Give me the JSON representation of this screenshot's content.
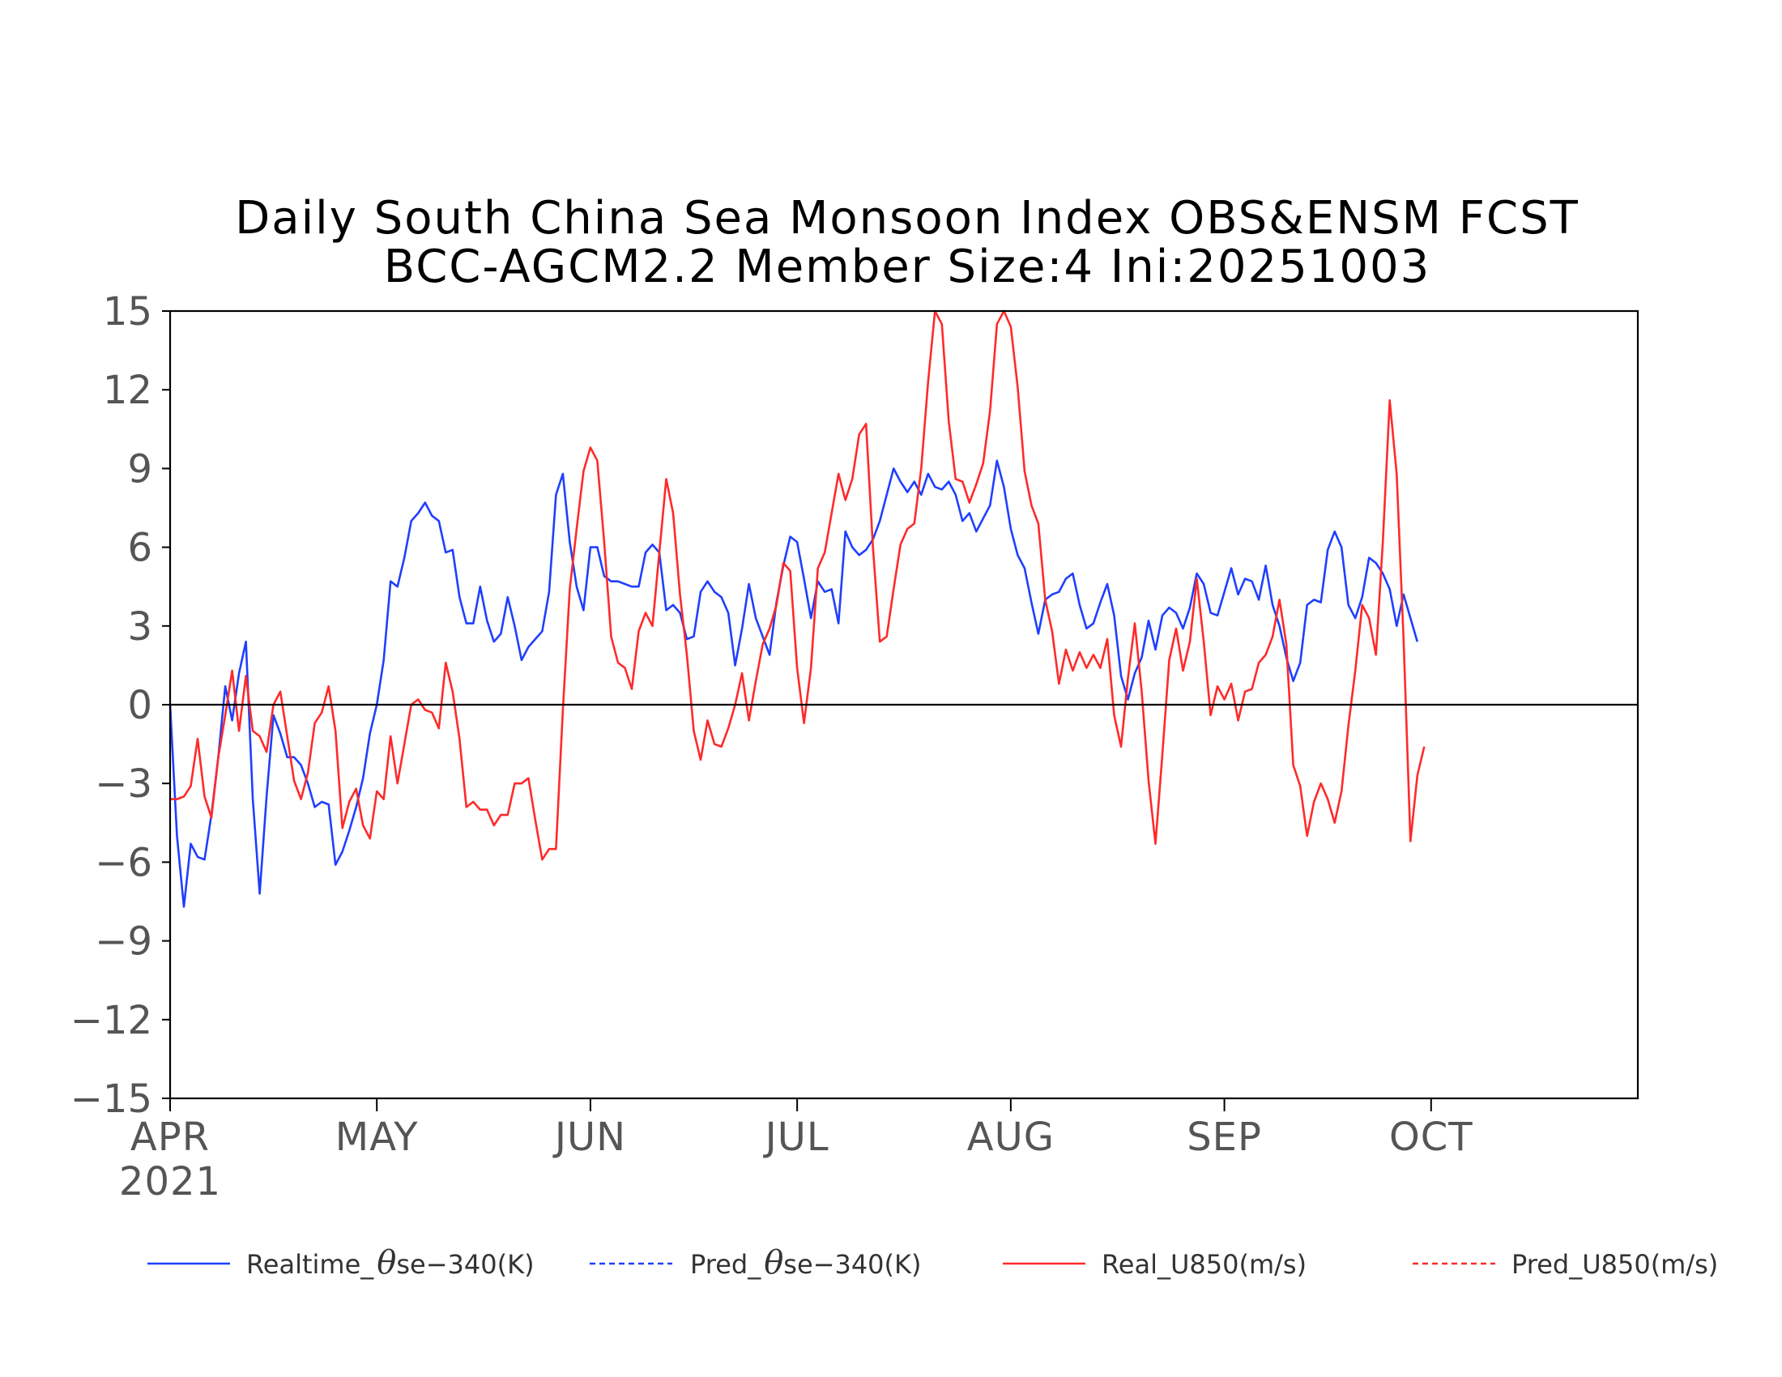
{
  "chart_data": {
    "type": "line",
    "title": "Daily South China Sea Monsoon Index OBS&ENSM FCST",
    "subtitle": "BCC-AGCM2.2   Member Size:4   Ini:20251003",
    "year_label": "2021",
    "ylim": [
      -15,
      15
    ],
    "yticks": [
      15,
      12,
      9,
      6,
      3,
      0,
      -3,
      -6,
      -9,
      -12,
      -15
    ],
    "ytick_labels": [
      "15",
      "12",
      "9",
      "6",
      "3",
      "0",
      "−3",
      "−6",
      "−9",
      "−12",
      "−15"
    ],
    "xlim_days": [
      0,
      213
    ],
    "months": [
      {
        "label": "APR",
        "day": 0
      },
      {
        "label": "MAY",
        "day": 30
      },
      {
        "label": "JUN",
        "day": 61
      },
      {
        "label": "JUL",
        "day": 91
      },
      {
        "label": "AUG",
        "day": 122
      },
      {
        "label": "SEP",
        "day": 153
      },
      {
        "label": "OCT",
        "day": 183
      }
    ],
    "zero_line": 0,
    "legend": [
      {
        "prefix": "Realtime_",
        "symbol": "θ",
        "suffix": "se−340(K)",
        "color": "#1f3fff",
        "style": "solid"
      },
      {
        "prefix": "Pred_",
        "symbol": "θ",
        "suffix": "se−340(K)",
        "color": "#1f3fff",
        "style": "dashed"
      },
      {
        "prefix": "Real_U850(m/s)",
        "symbol": "",
        "suffix": "",
        "color": "#ff2a2a",
        "style": "solid"
      },
      {
        "prefix": "Pred_U850(m/s)",
        "symbol": "",
        "suffix": "",
        "color": "#ff2a2a",
        "style": "dashed"
      }
    ],
    "series": [
      {
        "name": "Realtime_θse-340(K)",
        "color": "#1f3fff",
        "x_start": 0,
        "values": [
          0.0,
          -5.0,
          -7.7,
          -5.3,
          -5.8,
          -5.9,
          -4.2,
          -2.0,
          0.7,
          -0.6,
          1.2,
          2.4,
          -3.6,
          -7.2,
          -3.5,
          -0.4,
          -1.1,
          -2.0,
          -2.0,
          -2.3,
          -3.0,
          -3.9,
          -3.7,
          -3.8,
          -6.1,
          -5.6,
          -4.8,
          -3.9,
          -2.8,
          -1.1,
          0.0,
          1.7,
          4.7,
          4.5,
          5.6,
          7.0,
          7.3,
          7.7,
          7.2,
          7.0,
          5.8,
          5.9,
          4.1,
          3.1,
          3.1,
          4.5,
          3.2,
          2.4,
          2.7,
          4.1,
          3.0,
          1.7,
          2.2,
          2.5,
          2.8,
          4.3,
          8.0,
          8.8,
          6.2,
          4.5,
          3.6,
          6.0,
          6.0,
          4.9,
          4.7,
          4.7,
          4.6,
          4.5,
          4.5,
          5.8,
          6.1,
          5.8,
          3.6,
          3.8,
          3.5,
          2.5,
          2.6,
          4.3,
          4.7,
          4.3,
          4.1,
          3.5,
          1.5,
          2.9,
          4.6,
          3.3,
          2.6,
          1.9,
          3.9,
          5.3,
          6.4,
          6.2,
          4.8,
          3.3,
          4.7,
          4.3,
          4.4,
          3.1,
          6.6,
          6.0,
          5.7,
          5.9,
          6.3,
          7.0,
          8.0,
          9.0,
          8.5,
          8.1,
          8.5,
          8.0,
          8.8,
          8.3,
          8.2,
          8.5,
          8.0,
          7.0,
          7.3,
          6.6,
          7.1,
          7.6,
          9.3,
          8.3,
          6.7,
          5.7,
          5.2,
          3.9,
          2.7,
          4.0,
          4.2,
          4.3,
          4.8,
          5.0,
          3.8,
          2.9,
          3.1,
          3.9,
          4.6,
          3.4,
          1.1,
          0.2,
          1.2,
          1.8,
          3.2,
          2.1,
          3.4,
          3.7,
          3.5,
          2.9,
          3.7,
          5.0,
          4.6,
          3.5,
          3.4,
          4.3,
          5.2,
          4.2,
          4.8,
          4.7,
          4.0,
          5.3,
          3.8,
          3.0,
          1.8,
          0.9,
          1.6,
          3.8,
          4.0,
          3.9,
          5.9,
          6.6,
          6.0,
          3.8,
          3.3,
          4.1,
          5.6,
          5.4,
          5.0,
          4.4,
          3.0,
          4.2,
          3.3,
          2.4
        ]
      },
      {
        "name": "Real_U850(m/s)",
        "color": "#ff2a2a",
        "x_start": 0,
        "values": [
          -3.6,
          -3.6,
          -3.5,
          -3.1,
          -1.3,
          -3.5,
          -4.3,
          -2.0,
          -0.4,
          1.3,
          -1.0,
          1.1,
          -1.0,
          -1.2,
          -1.8,
          0.0,
          0.5,
          -1.2,
          -2.9,
          -3.6,
          -2.6,
          -0.7,
          -0.3,
          0.7,
          -1.0,
          -4.7,
          -3.7,
          -3.2,
          -4.6,
          -5.1,
          -3.3,
          -3.6,
          -1.2,
          -3.0,
          -1.5,
          0.0,
          0.2,
          -0.2,
          -0.3,
          -0.9,
          1.6,
          0.5,
          -1.3,
          -3.9,
          -3.7,
          -4.0,
          -4.0,
          -4.6,
          -4.2,
          -4.2,
          -3.0,
          -3.0,
          -2.8,
          -4.4,
          -5.9,
          -5.5,
          -5.5,
          -0.2,
          4.4,
          6.7,
          8.9,
          9.8,
          9.3,
          6.2,
          2.6,
          1.6,
          1.4,
          0.6,
          2.8,
          3.5,
          3.0,
          5.8,
          8.6,
          7.3,
          4.2,
          1.9,
          -1.0,
          -2.1,
          -0.6,
          -1.5,
          -1.6,
          -0.9,
          0.0,
          1.2,
          -0.6,
          0.9,
          2.3,
          2.9,
          3.8,
          5.4,
          5.1,
          1.4,
          -0.7,
          1.4,
          5.2,
          5.8,
          7.3,
          8.8,
          7.8,
          8.6,
          10.3,
          10.7,
          6.0,
          2.4,
          2.6,
          4.4,
          6.1,
          6.7,
          6.9,
          9.0,
          12.3,
          15.0,
          14.5,
          10.8,
          8.6,
          8.5,
          7.7,
          8.4,
          9.2,
          11.2,
          14.5,
          15.0,
          14.4,
          12.1,
          8.9,
          7.6,
          6.9,
          4.0,
          2.8,
          0.8,
          2.1,
          1.3,
          2.0,
          1.4,
          1.9,
          1.4,
          2.5,
          -0.4,
          -1.6,
          1.0,
          3.1,
          0.5,
          -2.9,
          -5.3,
          -1.9,
          1.7,
          2.9,
          1.3,
          2.4,
          4.8,
          2.4,
          -0.4,
          0.7,
          0.2,
          0.8,
          -0.6,
          0.5,
          0.6,
          1.6,
          1.9,
          2.6,
          4.0,
          2.3,
          -2.3,
          -3.1,
          -5.0,
          -3.7,
          -3.0,
          -3.6,
          -4.5,
          -3.3,
          -0.8,
          1.3,
          3.8,
          3.3,
          1.9,
          6.2,
          11.6,
          8.8,
          2.5,
          -5.2,
          -2.7,
          -1.6
        ]
      }
    ]
  }
}
